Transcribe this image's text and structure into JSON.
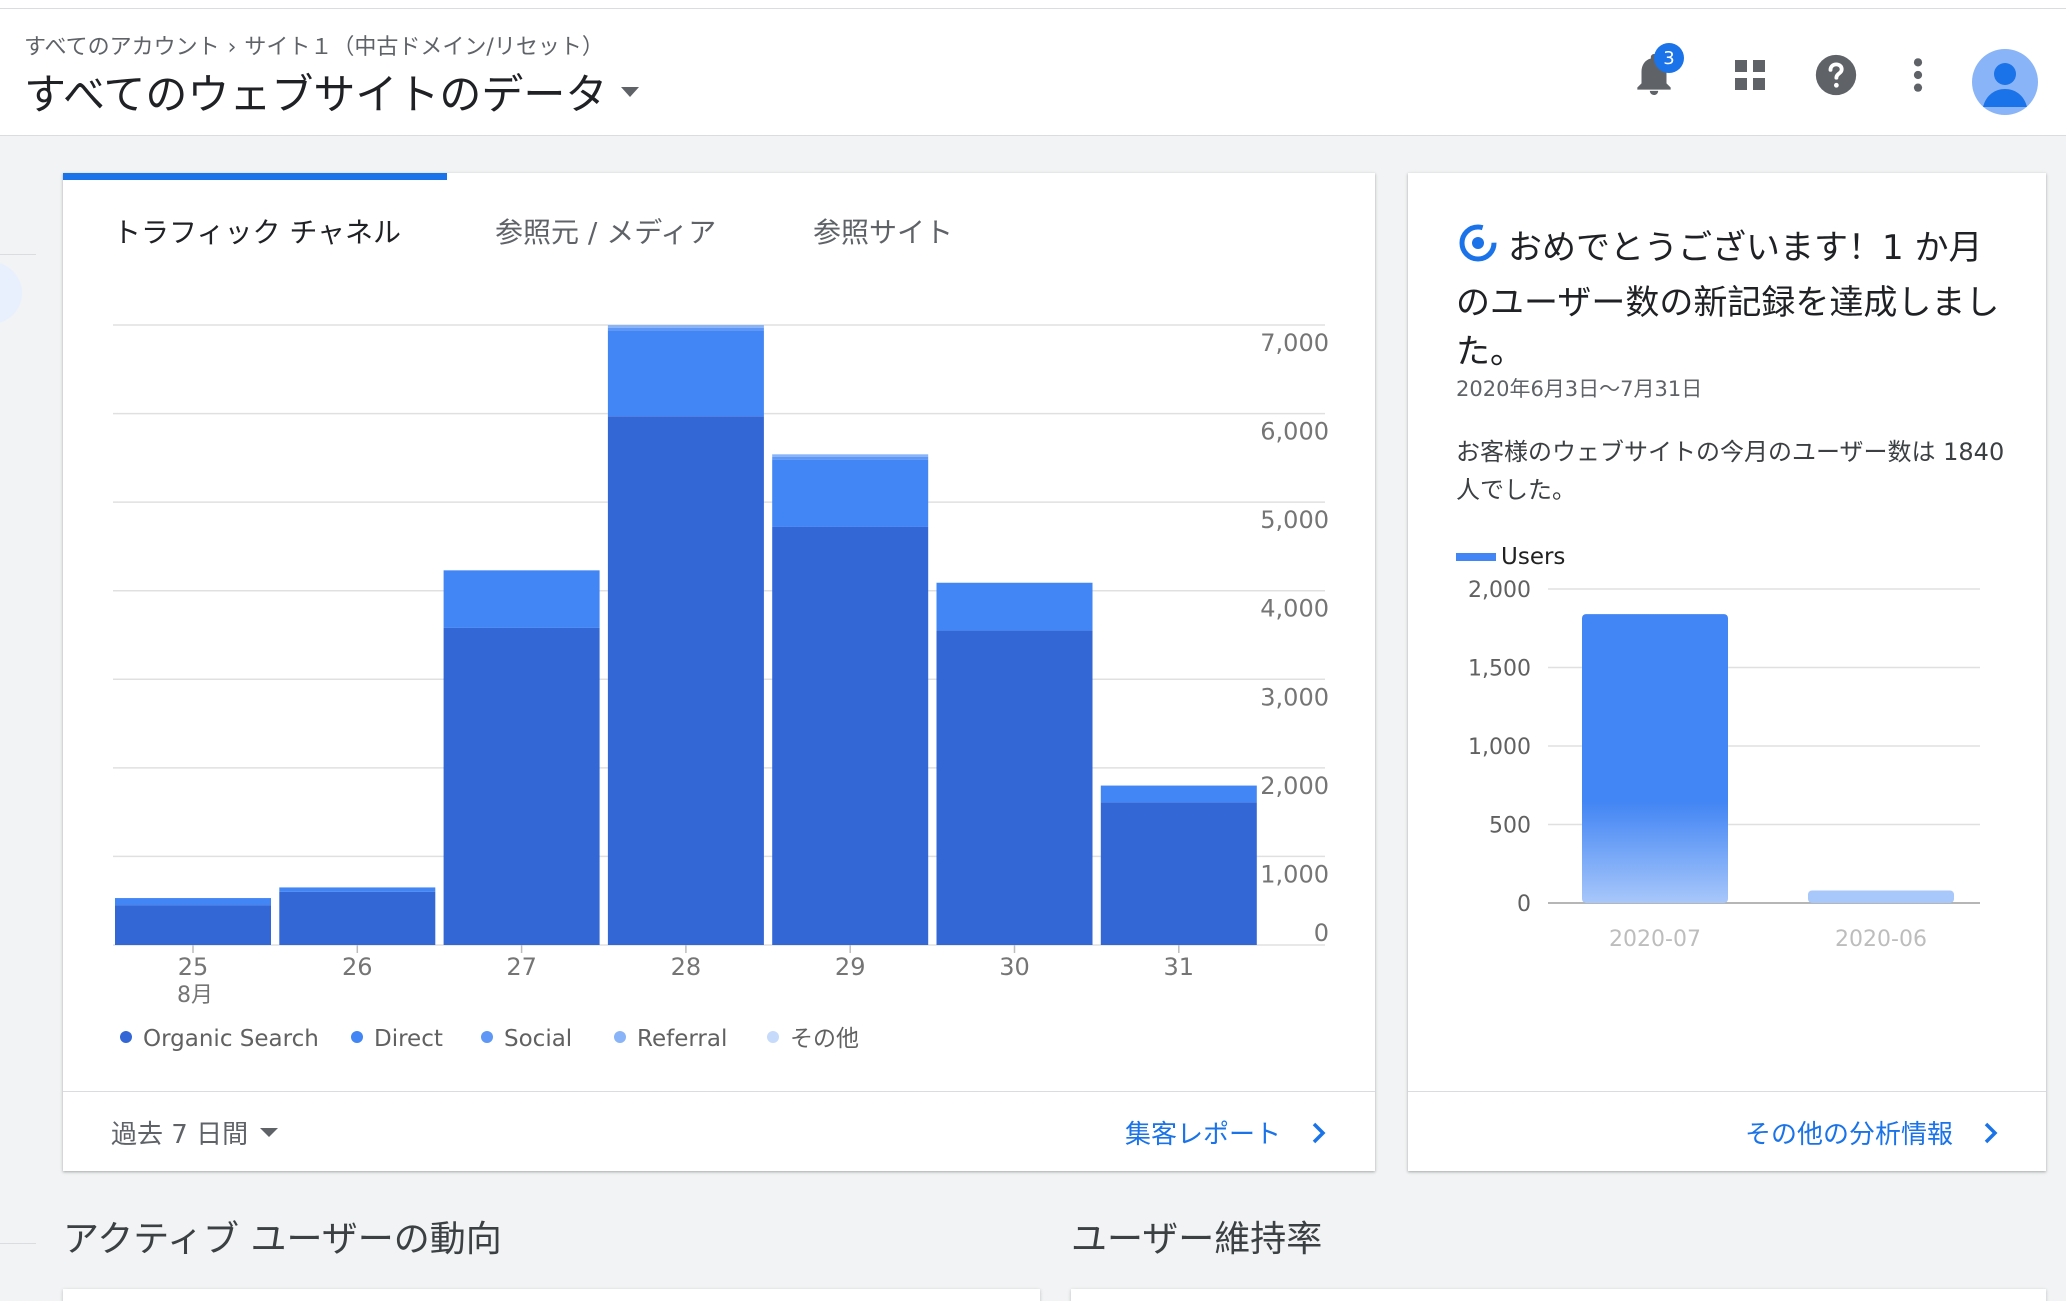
{
  "header": {
    "breadcrumb": {
      "account": "すべてのアカウント",
      "property": "サイト１（中古ドメイン/リセット）"
    },
    "title": "すべてのウェブサイトのデータ",
    "notification_count": "3"
  },
  "traffic_card": {
    "tabs": [
      {
        "label": "トラフィック チャネル",
        "active": true
      },
      {
        "label": "参照元 / メディア",
        "active": false
      },
      {
        "label": "参照サイト",
        "active": false
      }
    ],
    "date_range": "過去 7 日間",
    "report_link": "集客レポート"
  },
  "insight_card": {
    "title": "おめでとうございます！1 か月のユーザー数の新記録を達成しました。",
    "date": "2020年6月3日～7月31日",
    "text": "お客様のウェブサイトの今月のユーザー数は 1840 人でした。",
    "link": "その他の分析情報"
  },
  "sections": {
    "active_users": "アクティブ ユーザーの動向",
    "retention": "ユーザー維持率"
  },
  "colors": {
    "organic": "#3367d6",
    "direct": "#4285f4",
    "social": "#5e97f6",
    "referral": "#8ab4f8",
    "other": "#c6dafc",
    "accent": "#1a73e8"
  },
  "chart_data": [
    {
      "type": "bar",
      "stacked": true,
      "categories": [
        "25",
        "26",
        "27",
        "28",
        "29",
        "30",
        "31"
      ],
      "category_sublabels": [
        "8月",
        "",
        "",
        "",
        "",
        "",
        ""
      ],
      "series": [
        {
          "name": "Organic Search",
          "values": [
            450,
            600,
            3580,
            5970,
            4720,
            3550,
            1610
          ]
        },
        {
          "name": "Direct",
          "values": [
            80,
            50,
            650,
            970,
            760,
            540,
            190
          ]
        },
        {
          "name": "Social",
          "values": [
            0,
            0,
            0,
            30,
            30,
            0,
            0
          ]
        },
        {
          "name": "Referral",
          "values": [
            0,
            0,
            0,
            30,
            30,
            0,
            0
          ]
        },
        {
          "name": "その他",
          "values": [
            0,
            0,
            0,
            0,
            0,
            0,
            0
          ]
        }
      ],
      "yticks": [
        "0",
        "1,000",
        "2,000",
        "3,000",
        "4,000",
        "5,000",
        "6,000",
        "7,000"
      ],
      "ylim": [
        0,
        7000
      ],
      "yaxis_position": "right",
      "grid": true,
      "legend": "bottom"
    },
    {
      "type": "bar",
      "categories": [
        "2020-07",
        "2020-06"
      ],
      "series": [
        {
          "name": "Users",
          "values": [
            1840,
            80
          ]
        }
      ],
      "yticks": [
        "0",
        "500",
        "1,000",
        "1,500",
        "2,000"
      ],
      "ylim": [
        0,
        2000
      ],
      "grid": true,
      "legend": "top-left"
    }
  ]
}
